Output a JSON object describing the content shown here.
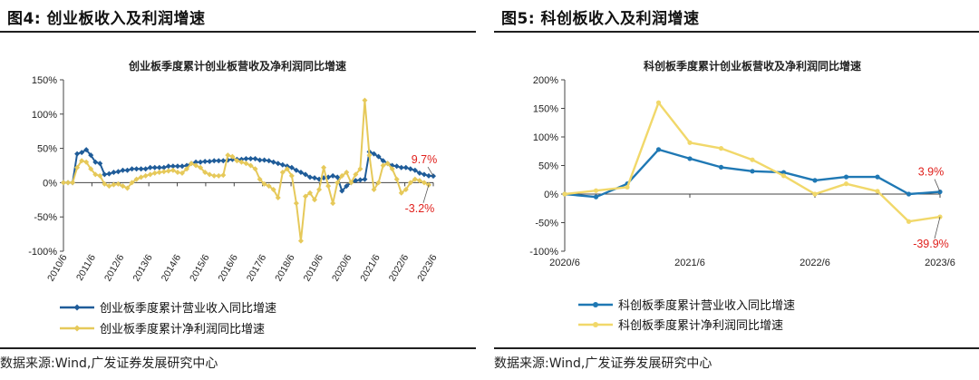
{
  "panels": [
    {
      "heading": "图4:  创业板收入及利润增速",
      "source": "数据来源:Wind,广发证券发展研究中心"
    },
    {
      "heading": "图5:  科创板收入及利润增速",
      "source": "数据来源:Wind,广发证券发展研究中心"
    }
  ],
  "chart_data": [
    {
      "type": "line",
      "title": "创业板季度累计创业板营收及净利润同比增速",
      "xlabel": "",
      "ylabel": "",
      "ylim": [
        -100,
        150
      ],
      "y_ticks": [
        150,
        100,
        50,
        0,
        -50,
        -100
      ],
      "y_tick_labels": [
        "150%",
        "100%",
        "50%",
        "0%",
        "-50%",
        "-100%"
      ],
      "x_tick_labels": [
        "2010/6",
        "2011/6",
        "2012/6",
        "2013/6",
        "2014/6",
        "2015/6",
        "2016/6",
        "2017/6",
        "2018/6",
        "2019/6",
        "2020/6",
        "2021/6",
        "2022/6",
        "2023/6"
      ],
      "legend_position": "bottom",
      "grid": false,
      "series": [
        {
          "name": "创业板季度累计营业收入同比增速",
          "color": "#1f5c99",
          "marker": "diamond",
          "values": [
            0,
            0,
            0,
            42,
            44,
            48,
            40,
            30,
            28,
            12,
            13,
            15,
            16,
            18,
            18,
            20,
            20,
            20,
            20,
            22,
            22,
            22,
            22,
            24,
            24,
            24,
            24,
            25,
            28,
            30,
            30,
            31,
            31,
            32,
            32,
            32,
            33,
            34,
            34,
            34,
            35,
            35,
            35,
            33,
            33,
            32,
            30,
            28,
            26,
            24,
            22,
            18,
            15,
            12,
            8,
            7,
            5,
            7,
            8,
            10,
            8,
            -12,
            -5,
            0,
            3,
            4,
            5,
            45,
            42,
            38,
            32,
            28,
            25,
            24,
            22,
            22,
            20,
            18,
            14,
            12,
            10,
            9.7
          ],
          "end_label": "9.7%"
        },
        {
          "name": "创业板季度累计净利润同比增速",
          "color": "#e6c95a",
          "marker": "diamond",
          "values": [
            0,
            0,
            0,
            22,
            32,
            30,
            20,
            12,
            10,
            -2,
            -5,
            -3,
            -2,
            -5,
            -8,
            0,
            5,
            8,
            10,
            12,
            14,
            15,
            16,
            17,
            18,
            15,
            14,
            20,
            28,
            25,
            22,
            15,
            12,
            10,
            10,
            11,
            40,
            38,
            32,
            30,
            28,
            25,
            20,
            5,
            -2,
            -5,
            -10,
            -22,
            15,
            20,
            10,
            -30,
            -85,
            -20,
            -15,
            -25,
            -10,
            22,
            -5,
            -30,
            0,
            10,
            15,
            0,
            12,
            20,
            120,
            40,
            -10,
            0,
            25,
            28,
            20,
            5,
            -15,
            -10,
            0,
            5,
            3,
            0,
            -3.2
          ],
          "end_label": "-3.2%"
        }
      ]
    },
    {
      "type": "line",
      "title": "科创板季度累计创业板营收及净利润同比增速",
      "xlabel": "",
      "ylabel": "",
      "ylim": [
        -100,
        200
      ],
      "y_ticks": [
        200,
        150,
        100,
        50,
        0,
        -50,
        -100
      ],
      "y_tick_labels": [
        "200%",
        "150%",
        "100%",
        "50%",
        "0%",
        "-50%",
        "-100%"
      ],
      "x_tick_labels": [
        "2020/6",
        "2021/6",
        "2022/6",
        "2023/6"
      ],
      "legend_position": "bottom",
      "grid": false,
      "series": [
        {
          "name": "科创板季度累计营业收入同比增速",
          "color": "#1f78b4",
          "marker": "circle",
          "values": [
            0,
            -5,
            18,
            78,
            62,
            47,
            40,
            38,
            24,
            30,
            30,
            0,
            3.9
          ],
          "end_label": "3.9%"
        },
        {
          "name": "科创板季度累计净利润同比增速",
          "color": "#f1d86a",
          "marker": "circle",
          "values": [
            0,
            6,
            12,
            160,
            90,
            80,
            60,
            32,
            0,
            18,
            5,
            -48,
            -39.9
          ],
          "end_label": "-39.9%"
        }
      ]
    }
  ]
}
